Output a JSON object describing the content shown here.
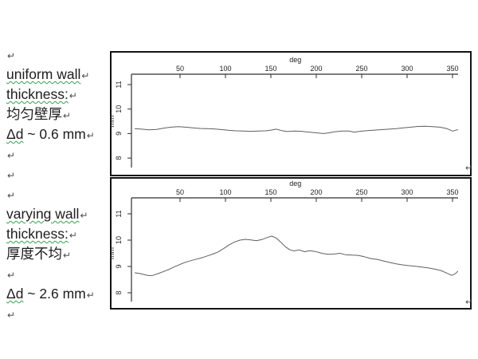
{
  "page": {
    "background": "#ffffff"
  },
  "left_panel": {
    "mark_glyph": "↵",
    "wavy_color": "#35a24d",
    "lines": [
      {
        "u": "",
        "r": ""
      },
      {
        "u": "uniform wall",
        "r": ""
      },
      {
        "u": "thickness:",
        "r": ""
      },
      {
        "u": "",
        "r": "均匀壁厚"
      },
      {
        "u": "Δd",
        "r": " ~ 0.6 mm"
      },
      {
        "u": "",
        "r": ""
      },
      {
        "u": "",
        "r": ""
      },
      {
        "u": "",
        "r": ""
      },
      {
        "u": "varying wall",
        "r": ""
      },
      {
        "u": "thickness:",
        "r": ""
      },
      {
        "u": "",
        "r": "厚度不均"
      },
      {
        "u": "",
        "r": ""
      },
      {
        "u": "Δd",
        "r": " ~ 2.6 mm"
      },
      {
        "u": "",
        "r": ""
      }
    ]
  },
  "chart_data": [
    {
      "type": "line",
      "name": "uniform wall thickness",
      "title": "",
      "xlabel": "deg",
      "ylabel": "mm",
      "xticks": [
        50,
        100,
        150,
        200,
        250,
        300,
        350
      ],
      "yticks": [
        8,
        9,
        10,
        11
      ],
      "xlim": [
        0,
        356
      ],
      "ylim": [
        7.6,
        11.4
      ],
      "grid": false,
      "legend": "none",
      "axis_color": "#2e2e2e",
      "line_color": "#5f5f5f",
      "frame_color": "#141414",
      "end_mark": "↵",
      "points": [
        [
          0,
          9.2
        ],
        [
          8,
          9.18
        ],
        [
          16,
          9.15
        ],
        [
          24,
          9.17
        ],
        [
          32,
          9.22
        ],
        [
          40,
          9.26
        ],
        [
          48,
          9.28
        ],
        [
          56,
          9.26
        ],
        [
          64,
          9.23
        ],
        [
          72,
          9.21
        ],
        [
          80,
          9.2
        ],
        [
          88,
          9.19
        ],
        [
          96,
          9.16
        ],
        [
          104,
          9.13
        ],
        [
          112,
          9.11
        ],
        [
          120,
          9.1
        ],
        [
          128,
          9.09
        ],
        [
          136,
          9.1
        ],
        [
          144,
          9.11
        ],
        [
          150,
          9.14
        ],
        [
          156,
          9.18
        ],
        [
          162,
          9.12
        ],
        [
          168,
          9.08
        ],
        [
          176,
          9.1
        ],
        [
          184,
          9.09
        ],
        [
          192,
          9.06
        ],
        [
          200,
          9.03
        ],
        [
          208,
          9.0
        ],
        [
          214,
          9.03
        ],
        [
          220,
          9.07
        ],
        [
          228,
          9.1
        ],
        [
          236,
          9.1
        ],
        [
          242,
          9.06
        ],
        [
          248,
          9.09
        ],
        [
          256,
          9.12
        ],
        [
          264,
          9.14
        ],
        [
          272,
          9.16
        ],
        [
          280,
          9.18
        ],
        [
          288,
          9.2
        ],
        [
          296,
          9.23
        ],
        [
          304,
          9.26
        ],
        [
          312,
          9.29
        ],
        [
          320,
          9.3
        ],
        [
          328,
          9.28
        ],
        [
          336,
          9.26
        ],
        [
          344,
          9.2
        ],
        [
          350,
          9.1
        ],
        [
          356,
          9.16
        ]
      ]
    },
    {
      "type": "line",
      "name": "varying wall thickness",
      "title": "",
      "xlabel": "deg",
      "ylabel": "mm",
      "xticks": [
        50,
        100,
        150,
        200,
        250,
        300,
        350
      ],
      "yticks": [
        8,
        9,
        10,
        11
      ],
      "xlim": [
        0,
        356
      ],
      "ylim": [
        7.7,
        11.6
      ],
      "grid": false,
      "legend": "none",
      "axis_color": "#2e2e2e",
      "line_color": "#5f5f5f",
      "frame_color": "#141414",
      "end_mark": "↵",
      "points": [
        [
          0,
          8.76
        ],
        [
          6,
          8.73
        ],
        [
          12,
          8.68
        ],
        [
          16,
          8.65
        ],
        [
          20,
          8.66
        ],
        [
          26,
          8.73
        ],
        [
          32,
          8.81
        ],
        [
          38,
          8.89
        ],
        [
          44,
          8.99
        ],
        [
          50,
          9.08
        ],
        [
          56,
          9.16
        ],
        [
          62,
          9.22
        ],
        [
          68,
          9.28
        ],
        [
          74,
          9.33
        ],
        [
          80,
          9.4
        ],
        [
          86,
          9.47
        ],
        [
          92,
          9.55
        ],
        [
          98,
          9.68
        ],
        [
          104,
          9.82
        ],
        [
          110,
          9.93
        ],
        [
          116,
          10.0
        ],
        [
          122,
          10.03
        ],
        [
          128,
          10.01
        ],
        [
          134,
          9.98
        ],
        [
          140,
          10.02
        ],
        [
          146,
          10.1
        ],
        [
          151,
          10.15
        ],
        [
          156,
          10.08
        ],
        [
          161,
          9.92
        ],
        [
          166,
          9.75
        ],
        [
          171,
          9.63
        ],
        [
          176,
          9.59
        ],
        [
          181,
          9.63
        ],
        [
          187,
          9.56
        ],
        [
          193,
          9.6
        ],
        [
          199,
          9.57
        ],
        [
          206,
          9.5
        ],
        [
          213,
          9.46
        ],
        [
          219,
          9.47
        ],
        [
          226,
          9.5
        ],
        [
          232,
          9.45
        ],
        [
          239,
          9.43
        ],
        [
          246,
          9.42
        ],
        [
          253,
          9.37
        ],
        [
          260,
          9.3
        ],
        [
          267,
          9.27
        ],
        [
          274,
          9.21
        ],
        [
          281,
          9.15
        ],
        [
          288,
          9.1
        ],
        [
          295,
          9.06
        ],
        [
          302,
          9.03
        ],
        [
          309,
          9.01
        ],
        [
          316,
          8.98
        ],
        [
          323,
          8.95
        ],
        [
          330,
          8.9
        ],
        [
          337,
          8.85
        ],
        [
          343,
          8.76
        ],
        [
          349,
          8.66
        ],
        [
          353,
          8.72
        ],
        [
          356,
          8.82
        ]
      ]
    }
  ]
}
